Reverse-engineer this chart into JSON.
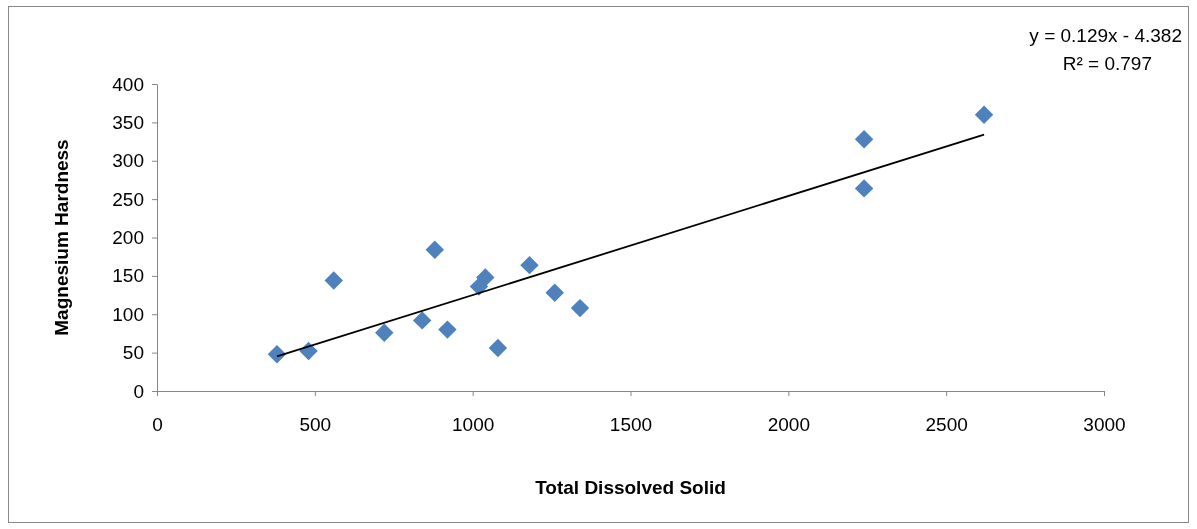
{
  "chart_data": {
    "type": "scatter",
    "xlabel": "Total Dissolved Solid",
    "ylabel": "Magnesium Hardness",
    "annotations": [
      "y = 0.129x - 4.382",
      "R² = 0.797"
    ],
    "xlim": [
      0,
      3000
    ],
    "xticks": [
      0,
      500,
      1000,
      1500,
      2000,
      2500,
      3000
    ],
    "ylim": [
      0,
      400
    ],
    "yticks": [
      0,
      50,
      100,
      150,
      200,
      250,
      300,
      350,
      400
    ],
    "grid": false,
    "series": [
      {
        "marker": "diamond",
        "color": "#4f81bd",
        "x": [
          380,
          480,
          560,
          720,
          840,
          880,
          920,
          1020,
          1040,
          1080,
          1180,
          1260,
          1340,
          2240,
          2240,
          2620
        ],
        "values": [
          48,
          52,
          144,
          76,
          92,
          184,
          80,
          136,
          148,
          56,
          164,
          128,
          108,
          328,
          264,
          360
        ]
      },
      {
        "type": "line",
        "marker": "none",
        "line_style": "solid",
        "color": "#000000",
        "x": [
          380,
          2620
        ],
        "values": [
          45,
          334
        ]
      }
    ]
  }
}
